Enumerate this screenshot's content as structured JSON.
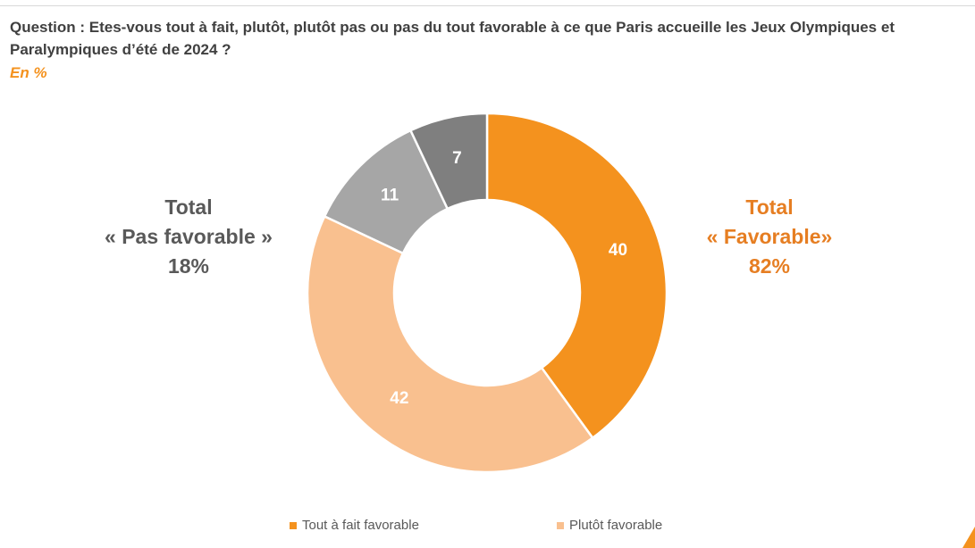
{
  "question": "Question : Etes-vous tout à fait, plutôt, plutôt pas ou pas du tout favorable à ce que Paris accueille les Jeux Olympiques et Paralympiques d’été de 2024 ?",
  "unit": "En %",
  "total_unfavorable": {
    "line1": "Total",
    "line2": "« Pas favorable »",
    "value": "18%"
  },
  "total_favorable": {
    "line1": "Total",
    "line2": "« Favorable»",
    "value": "82%"
  },
  "chart_data": {
    "type": "pie",
    "variant": "donut",
    "title": "",
    "start": "12 o'clock, clockwise",
    "slices": [
      {
        "label": "Tout à fait favorable",
        "value": 40,
        "color": "#f4921e",
        "text_color": "#ffffff",
        "in_legend": true
      },
      {
        "label": "Plutôt favorable",
        "value": 42,
        "color": "#f9c08f",
        "text_color": "#ffffff",
        "in_legend": true
      },
      {
        "label": "",
        "value": 11,
        "color": "#a6a6a6",
        "text_color": "#ffffff",
        "in_legend": false
      },
      {
        "label": "",
        "value": 7,
        "color": "#7f7f7f",
        "text_color": "#ffffff",
        "in_legend": false
      }
    ],
    "legend": [
      "Tout à fait favorable",
      "Plutôt favorable"
    ],
    "legend_position": "bottom"
  },
  "colors": {
    "accent_orange": "#f4921e",
    "favorable_total_text": "#e67e22",
    "title_text": "#404040",
    "unfavorable_total_text": "#595959"
  },
  "icons": {
    "corner_mark": "orange-corner-triangle"
  }
}
